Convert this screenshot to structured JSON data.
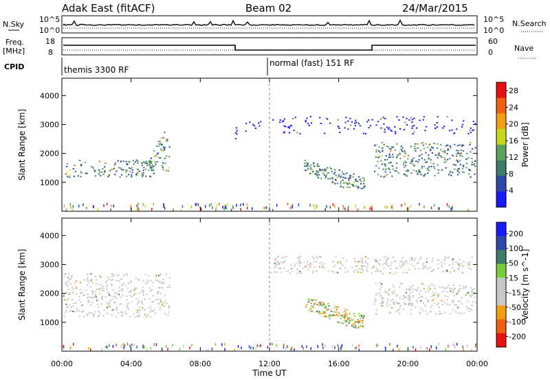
{
  "header": {
    "radar": "Adak East (fitACF)",
    "beam": "Beam 02",
    "date": "24/Mar/2015"
  },
  "strip_labels": {
    "nsky": "N.Sky",
    "nsky_ticks": [
      "10^5",
      "10^0"
    ],
    "nsearch": "N.Search",
    "nsearch_ticks": [
      "10^5",
      "10^0"
    ],
    "freq": "Freq.",
    "freq_unit": "[MHz]",
    "freq_ticks": [
      "18",
      "8"
    ],
    "nave": "Nave",
    "nave_ticks": [
      "60",
      "0"
    ],
    "cpid": "CPID",
    "cpid_1": "themis 3300 RF",
    "cpid_2": "normal (fast) 151 RF"
  },
  "colors": {
    "power": [
      "#1a1aff",
      "#2b4aa8",
      "#3f7a6a",
      "#5aa55a",
      "#c8d81a",
      "#f0a010",
      "#f06010",
      "#e81010"
    ],
    "velocity": [
      "#e81010",
      "#f06010",
      "#f0a010",
      "#c8c8c8",
      "#c8c8c8",
      "#7acc3a",
      "#3f7a6a",
      "#2b4aa8",
      "#1a1aff"
    ]
  },
  "chart_data": [
    {
      "type": "heatmap",
      "title": "",
      "xlabel": "Time UT",
      "ylabel": "Slant Range [km]",
      "x_ticks": [
        "00:00",
        "04:00",
        "08:00",
        "12:00",
        "16:00",
        "20:00",
        "00:00"
      ],
      "y_ticks": [
        "1000",
        "2000",
        "3000",
        "4000"
      ],
      "ylim": [
        0,
        4600
      ],
      "colorbar": {
        "label": "Power [dB]",
        "ticks": [
          "4",
          "8",
          "12",
          "16",
          "20",
          "24",
          "28"
        ],
        "range": [
          0,
          30
        ]
      },
      "regions": [
        {
          "t_start": 0.0,
          "t_end": 5.3,
          "range_low": 1200,
          "range_high": 1800,
          "level": "mid"
        },
        {
          "t_start": 5.0,
          "t_end": 6.2,
          "range_low": 1400,
          "range_high": 2700,
          "level": "mid"
        },
        {
          "t_start": 10.0,
          "t_end": 11.5,
          "range_low": 2500,
          "range_high": 3200,
          "level": "low"
        },
        {
          "t_start": 14.0,
          "t_end": 17.5,
          "range_low": 800,
          "range_high": 1800,
          "level": "mid"
        },
        {
          "t_start": 18.0,
          "t_end": 24.0,
          "range_low": 1200,
          "range_high": 2400,
          "level": "mid"
        },
        {
          "t_start": 12.0,
          "t_end": 24.0,
          "range_low": 2700,
          "range_high": 3300,
          "level": "low"
        }
      ]
    },
    {
      "type": "heatmap",
      "title": "",
      "xlabel": "Time UT",
      "ylabel": "Slant Range [km]",
      "x_ticks": [
        "00:00",
        "04:00",
        "08:00",
        "12:00",
        "16:00",
        "20:00",
        "00:00"
      ],
      "y_ticks": [
        "1000",
        "2000",
        "3000",
        "4000"
      ],
      "ylim": [
        0,
        4600
      ],
      "colorbar": {
        "label": "Velocity [m s^-1]",
        "ticks": [
          "200",
          "100",
          "50",
          "15",
          "-15",
          "-50",
          "-100",
          "-200"
        ],
        "range": [
          -250,
          250
        ]
      },
      "regions": [
        {
          "t_start": 0.0,
          "t_end": 6.2,
          "range_low": 1200,
          "range_high": 2700,
          "level": "near-zero"
        },
        {
          "t_start": 14.0,
          "t_end": 17.5,
          "range_low": 800,
          "range_high": 1900,
          "level": "mixed-negative"
        },
        {
          "t_start": 18.0,
          "t_end": 24.0,
          "range_low": 1300,
          "range_high": 2400,
          "level": "near-zero"
        },
        {
          "t_start": 12.0,
          "t_end": 24.0,
          "range_low": 2700,
          "range_high": 3300,
          "level": "near-zero"
        }
      ]
    }
  ]
}
